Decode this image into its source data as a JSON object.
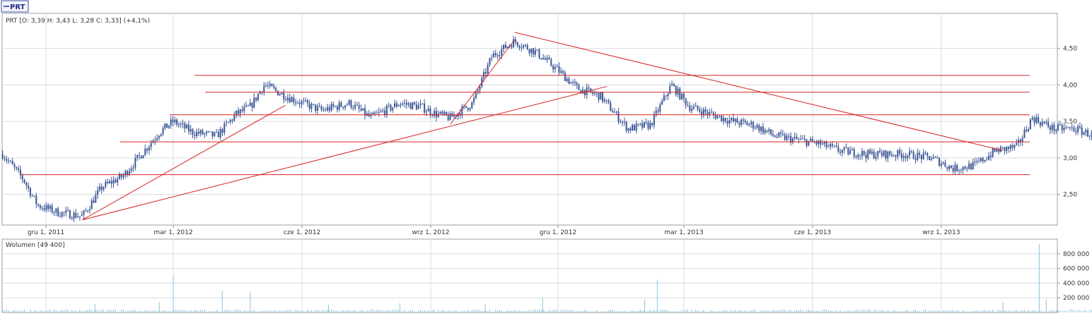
{
  "legend_tab": {
    "label": "PRT"
  },
  "chart_data": [
    {
      "type": "candlestick",
      "symbol": "PRT",
      "info": "PRT [O: 3,39  H: 3,43  L: 3,28  C: 3,33] (+4,1%)",
      "ohlc_last": {
        "open": 3.39,
        "high": 3.43,
        "low": 3.28,
        "close": 3.33,
        "change": "+4,1%"
      },
      "x_ticks": [
        "gru 1, 2011",
        "mar 1, 2012",
        "cze 1, 2012",
        "wrz 1, 2012",
        "gru 1, 2012",
        "mar 1, 2013",
        "cze 1, 2013",
        "wrz 1, 2013"
      ],
      "y_ticks": [
        "4,50",
        "4,00",
        "3,50",
        "3,00",
        "2,50"
      ],
      "ylim": [
        2.08,
        4.98
      ],
      "xlim": [
        "2011-10-17",
        "2014-01-29"
      ],
      "series_color": "#3a5694",
      "anchors": [
        [
          "2011-10-31",
          3.05
        ],
        [
          "2011-11-15",
          2.7
        ],
        [
          "2011-11-25",
          2.35
        ],
        [
          "2011-12-10",
          2.25
        ],
        [
          "2011-12-27",
          2.2
        ],
        [
          "2012-01-10",
          2.6
        ],
        [
          "2012-01-25",
          2.75
        ],
        [
          "2012-02-05",
          3.0
        ],
        [
          "2012-02-20",
          3.35
        ],
        [
          "2012-03-01",
          3.5
        ],
        [
          "2012-03-15",
          3.35
        ],
        [
          "2012-04-01",
          3.3
        ],
        [
          "2012-04-15",
          3.6
        ],
        [
          "2012-04-25",
          3.7
        ],
        [
          "2012-05-05",
          4.0
        ],
        [
          "2012-05-20",
          3.85
        ],
        [
          "2012-06-01",
          3.75
        ],
        [
          "2012-06-15",
          3.65
        ],
        [
          "2012-07-05",
          3.75
        ],
        [
          "2012-07-20",
          3.55
        ],
        [
          "2012-08-10",
          3.75
        ],
        [
          "2012-08-25",
          3.7
        ],
        [
          "2012-09-05",
          3.6
        ],
        [
          "2012-09-15",
          3.55
        ],
        [
          "2012-10-01",
          3.75
        ],
        [
          "2012-10-15",
          4.4
        ],
        [
          "2012-10-31",
          4.6
        ],
        [
          "2012-11-15",
          4.45
        ],
        [
          "2012-12-01",
          4.2
        ],
        [
          "2012-12-15",
          3.95
        ],
        [
          "2012-12-31",
          3.85
        ],
        [
          "2013-01-20",
          3.4
        ],
        [
          "2013-02-05",
          3.45
        ],
        [
          "2013-02-20",
          4.0
        ],
        [
          "2013-03-05",
          3.7
        ],
        [
          "2013-03-20",
          3.6
        ],
        [
          "2013-04-05",
          3.5
        ],
        [
          "2013-04-20",
          3.45
        ],
        [
          "2013-05-05",
          3.3
        ],
        [
          "2013-05-20",
          3.25
        ],
        [
          "2013-06-05",
          3.2
        ],
        [
          "2013-06-20",
          3.1
        ],
        [
          "2013-07-10",
          3.05
        ],
        [
          "2013-08-05",
          3.05
        ],
        [
          "2013-08-25",
          3.0
        ],
        [
          "2013-09-10",
          2.85
        ],
        [
          "2013-09-25",
          2.9
        ],
        [
          "2013-10-10",
          3.1
        ],
        [
          "2013-10-25",
          3.15
        ],
        [
          "2013-11-05",
          3.55
        ],
        [
          "2013-11-20",
          3.4
        ],
        [
          "2013-12-05",
          3.4
        ],
        [
          "2013-12-20",
          3.3
        ],
        [
          "2013-12-31",
          3.35
        ]
      ],
      "annotations": {
        "color": "#d82020",
        "horizontal_levels": [
          4.13,
          3.9,
          3.59,
          3.22,
          2.77
        ],
        "trend_lines": [
          [
            [
              "2011-12-27",
              2.15
            ],
            [
              "2012-05-20",
              3.72
            ]
          ],
          [
            [
              "2011-12-27",
              2.15
            ],
            [
              "2013-01-05",
              3.98
            ]
          ],
          [
            [
              "2012-09-15",
              3.46
            ],
            [
              "2012-10-31",
              4.62
            ]
          ],
          [
            [
              "2012-10-31",
              4.72
            ],
            [
              "2013-10-15",
              3.1
            ]
          ]
        ]
      }
    },
    {
      "type": "bar",
      "title": "Wolumen [49 400]",
      "y_ticks": [
        "800 000",
        "600 000",
        "400 000",
        "200 000"
      ],
      "ylim": [
        0,
        1000000
      ],
      "series_color": "#8cc4e0",
      "spikes": [
        [
          "2012-01-05",
          120000
        ],
        [
          "2012-02-20",
          140000
        ],
        [
          "2012-03-01",
          500000
        ],
        [
          "2012-04-05",
          300000
        ],
        [
          "2012-04-25",
          280000
        ],
        [
          "2012-06-20",
          100000
        ],
        [
          "2012-08-10",
          130000
        ],
        [
          "2012-10-10",
          120000
        ],
        [
          "2012-11-20",
          200000
        ],
        [
          "2013-02-01",
          180000
        ],
        [
          "2013-02-10",
          450000
        ],
        [
          "2013-10-15",
          140000
        ],
        [
          "2013-11-10",
          930000
        ],
        [
          "2013-11-15",
          180000
        ]
      ],
      "base_level": 30000
    }
  ]
}
